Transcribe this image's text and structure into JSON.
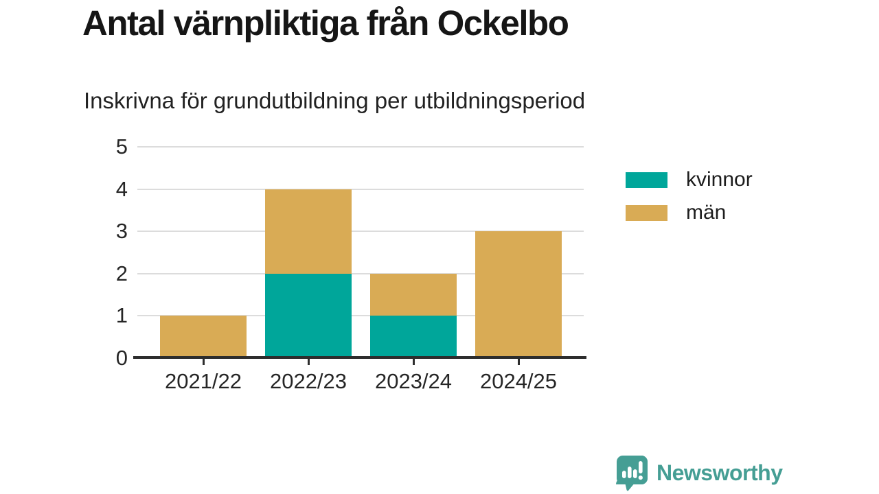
{
  "page": {
    "title": "Antal värnpliktiga från Ockelbo",
    "subtitle": "Inskrivna för grundutbildning per utbildningsperiod"
  },
  "chart_data": {
    "type": "bar",
    "stacked": true,
    "title": "Antal värnpliktiga från Ockelbo",
    "subtitle": "Inskrivna för grundutbildning per utbildningsperiod",
    "categories": [
      "2021/22",
      "2022/23",
      "2023/24",
      "2024/25"
    ],
    "series": [
      {
        "name": "kvinnor",
        "color": "#00a69a",
        "values": [
          0,
          2,
          1,
          0
        ]
      },
      {
        "name": "män",
        "color": "#d9ab55",
        "values": [
          1,
          2,
          1,
          3
        ]
      }
    ],
    "totals": [
      1,
      4,
      2,
      3
    ],
    "xlabel": "",
    "ylabel": "",
    "ylim": [
      0,
      5
    ],
    "yticks": [
      0,
      1,
      2,
      3,
      4,
      5
    ],
    "grid": "horizontal-light",
    "legend_position": "right"
  },
  "branding": {
    "logo_text": "Newsworthy",
    "logo_color": "#459e94",
    "logo_icon": "newsworthy-speech-bubble-bar-chart-icon"
  },
  "colors": {
    "series_kvinnor": "#00a69a",
    "series_man": "#d9ab55",
    "axis": "#2d2d2d",
    "gridline": "#dcdcdc",
    "text": "#1d1d1d",
    "background": "#ffffff"
  }
}
